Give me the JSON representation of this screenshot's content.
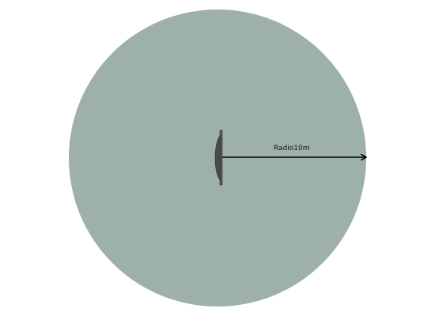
{
  "diagram": {
    "radius_label": "Radio10m",
    "colors": {
      "area_fill": "#9eb0aa",
      "device_fill": "#555555",
      "device_stroke": "#333333",
      "arrow": "#000000"
    },
    "icons": {
      "device": "wall-mounted-device-icon",
      "arrow": "radius-arrow-icon"
    }
  }
}
